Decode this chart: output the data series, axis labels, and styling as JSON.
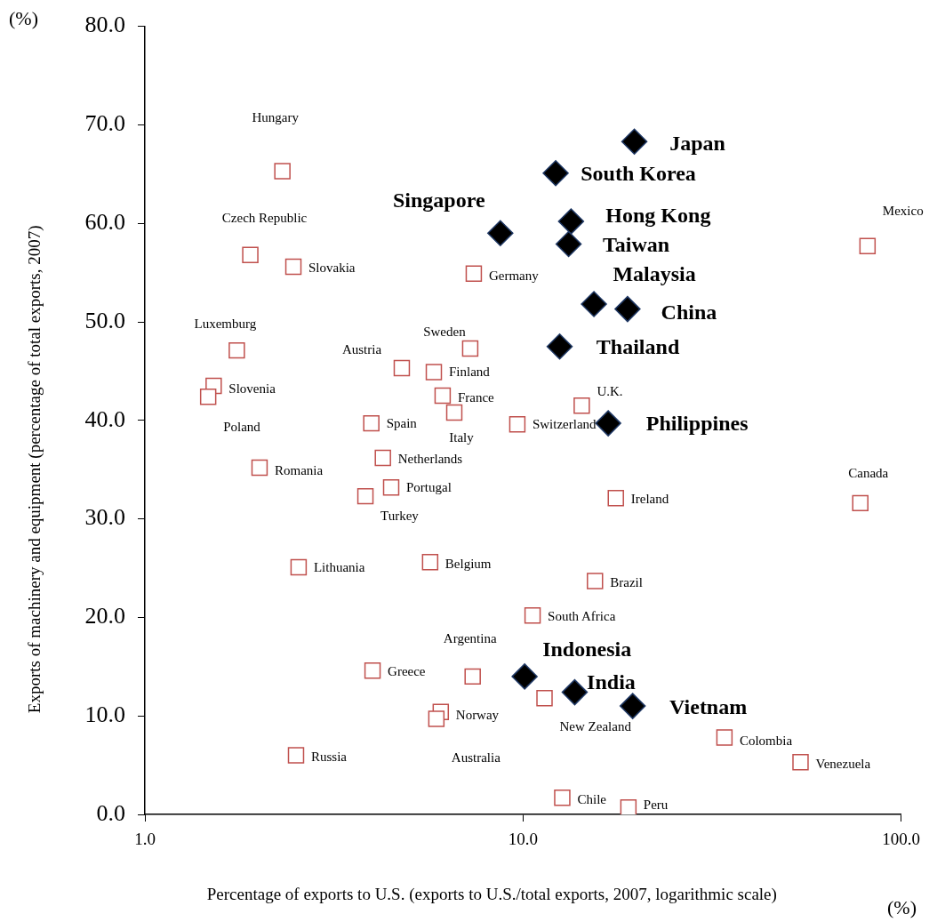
{
  "chart_data": {
    "type": "scatter",
    "xlabel": "Percentage of exports to U.S. (exports to U.S./total exports, 2007, logarithmic scale)",
    "ylabel": "Exports of machinery and equipment (percentage of total exports, 2007)",
    "annotations": [
      "(%)",
      "(%)"
    ],
    "log": "x",
    "grid": false,
    "legend": false,
    "xlim": [
      1,
      100
    ],
    "xticks": [
      {
        "value": 1,
        "label": "1.0"
      },
      {
        "value": 10,
        "label": "10.0"
      },
      {
        "value": 100,
        "label": "100.0"
      }
    ],
    "ylim": [
      0,
      80
    ],
    "yticks": [
      {
        "value": 0,
        "label": "0.0"
      },
      {
        "value": 10,
        "label": "10.0"
      },
      {
        "value": 20,
        "label": "20.0"
      },
      {
        "value": 30,
        "label": "30.0"
      },
      {
        "value": 40,
        "label": "40.0"
      },
      {
        "value": 50,
        "label": "50.0"
      },
      {
        "value": 60,
        "label": "60.0"
      },
      {
        "value": 70,
        "label": "70.0"
      },
      {
        "value": 80,
        "label": "80.0"
      }
    ],
    "series": [
      {
        "color": "#c0504d",
        "marker": "square",
        "x": [
          2.31,
          1.9,
          2.47,
          1.75,
          1.52,
          1.47,
          2.01,
          4.78,
          7.25,
          7.41,
          5.81,
          6.13,
          6.58,
          3.97,
          4.26,
          4.48,
          3.83,
          9.66,
          14.3,
          17.6,
          78,
          81.5,
          2.55,
          5.68,
          15.5,
          10.6,
          7.36,
          4.0,
          6.06,
          5.9,
          11.4,
          2.51,
          34.1,
          54.2,
          12.7,
          19.0
        ],
        "values": [
          65.3,
          56.8,
          55.6,
          47.1,
          43.5,
          42.4,
          35.2,
          45.3,
          47.3,
          54.9,
          44.9,
          42.5,
          40.8,
          39.7,
          36.2,
          33.2,
          32.3,
          39.6,
          41.5,
          32.1,
          31.6,
          57.7,
          25.1,
          25.6,
          23.7,
          20.2,
          14.0,
          14.6,
          10.4,
          9.7,
          11.8,
          6.0,
          7.8,
          5.3,
          1.7,
          0.7
        ],
        "value_labels": [
          "Hungary",
          "Czech Republic",
          "Slovakia",
          "Luxemburg",
          "Slovenia",
          "Poland",
          "Romania",
          "Austria",
          "Sweden",
          "Germany",
          "Finland",
          "France",
          "Italy",
          "Spain",
          "Netherlands",
          "Portugal",
          "Turkey",
          "Switzerland",
          "U.K.",
          "Ireland",
          "Canada",
          "Mexico",
          "Lithuania",
          "Belgium",
          "Brazil",
          "South Africa",
          "Argentina",
          "Greece",
          "Norway",
          "Australia",
          "New Zealand",
          "Russia",
          "Colombia",
          "Venezuela",
          "Chile",
          "Peru"
        ]
      },
      {
        "color": "#000000",
        "marker": "diamond",
        "x": [
          19.7,
          12.2,
          8.71,
          13.4,
          13.2,
          15.4,
          18.9,
          12.5,
          16.8,
          10.1,
          13.7,
          19.5
        ],
        "values": [
          68.3,
          65.1,
          59.0,
          60.2,
          57.9,
          51.8,
          51.3,
          47.5,
          39.7,
          14.0,
          12.4,
          11.0
        ],
        "value_labels": [
          "Japan",
          "South Korea",
          "Singapore",
          "Hong Kong",
          "Taiwan",
          "Malaysia",
          "China",
          "Thailand",
          "Philippines",
          "Indonesia",
          "India",
          "Vietnam"
        ]
      }
    ]
  }
}
